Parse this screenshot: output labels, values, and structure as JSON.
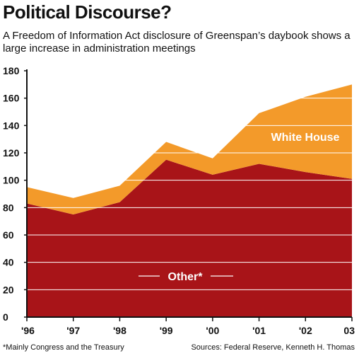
{
  "header": {
    "title": "Political Discourse?",
    "subtitle": "A Freedom of Information Act disclosure of Greenspan’s daybook shows a large increase in administration meetings"
  },
  "footer": {
    "footnote": "*Mainly Congress and the Treasury",
    "source": "Sources: Federal Reserve, Kenneth H. Thomas"
  },
  "colors": {
    "other": "#A81418",
    "white_house": "#F39A2A",
    "gridline": "#ffffff",
    "axis": "#111111"
  },
  "chart_data": {
    "type": "area",
    "stacked": true,
    "categories": [
      "'96",
      "'97",
      "'98",
      "'99",
      "'00",
      "'01",
      "'02",
      "03"
    ],
    "series": [
      {
        "name": "Other*",
        "values": [
          83,
          75,
          84,
          115,
          104,
          112,
          106,
          101
        ]
      },
      {
        "name": "White House",
        "values": [
          12,
          12,
          12,
          13,
          12,
          37,
          55,
          69
        ]
      }
    ],
    "totals": [
      95,
      87,
      96,
      128,
      116,
      149,
      161,
      170
    ],
    "ylim": [
      0,
      180
    ],
    "yticks": [
      0,
      20,
      40,
      60,
      80,
      100,
      120,
      140,
      160,
      180
    ],
    "grid": true,
    "title": "Political Discourse?",
    "subtitle": "A Freedom of Information Act disclosure of Greenspan’s daybook shows a large increase in administration meetings",
    "xlabel": "",
    "ylabel": ""
  }
}
